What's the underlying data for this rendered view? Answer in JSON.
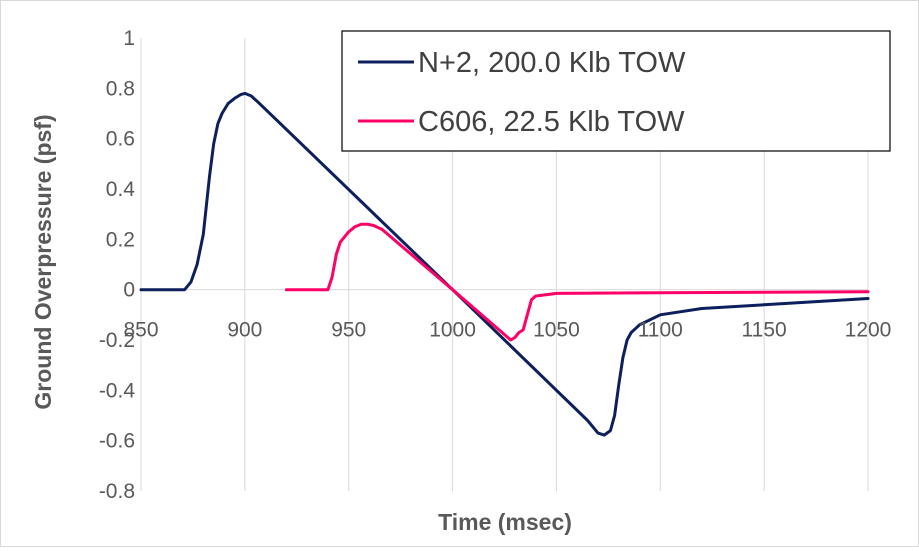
{
  "chart_data": {
    "type": "line",
    "title": "",
    "xlabel": "Time (msec)",
    "ylabel": "Ground Overpressure (psf)",
    "xlim": [
      850,
      1200
    ],
    "ylim": [
      -0.8,
      1
    ],
    "x_ticks": [
      850,
      900,
      950,
      1000,
      1050,
      1100,
      1150,
      1200
    ],
    "y_ticks": [
      -0.8,
      -0.6,
      -0.4,
      -0.2,
      0,
      0.2,
      0.4,
      0.6,
      0.8,
      1
    ],
    "x_tick_labels": [
      "850",
      "900",
      "950",
      "1000",
      "1050",
      "1100",
      "1150",
      "1200"
    ],
    "y_tick_labels": [
      "-0.8",
      "-0.6",
      "-0.4",
      "-0.2",
      "0",
      "0.2",
      "0.4",
      "0.6",
      "0.8",
      "1"
    ],
    "grid": "vertical",
    "legend_position": "top-right",
    "series": [
      {
        "name": "N+2, 200.0 Klb TOW",
        "color": "#0d1f5c",
        "x": [
          850,
          871,
          874,
          877,
          880,
          883,
          885,
          887,
          889,
          892,
          895,
          898,
          900,
          903,
          907,
          1000,
          1065,
          1070,
          1073,
          1076,
          1078,
          1080,
          1082,
          1084,
          1086,
          1090,
          1100,
          1120,
          1150,
          1170,
          1190,
          1200
        ],
        "y": [
          0,
          0,
          0.03,
          0.1,
          0.22,
          0.45,
          0.58,
          0.66,
          0.7,
          0.74,
          0.76,
          0.775,
          0.78,
          0.77,
          0.74,
          0,
          -0.52,
          -0.57,
          -0.578,
          -0.56,
          -0.5,
          -0.38,
          -0.27,
          -0.2,
          -0.17,
          -0.14,
          -0.1,
          -0.075,
          -0.06,
          -0.05,
          -0.04,
          -0.035
        ]
      },
      {
        "name": "C606, 22.5 Klb TOW",
        "color": "#ff0066",
        "x": [
          920,
          940,
          942,
          944,
          946,
          948,
          950,
          953,
          956,
          959,
          962,
          966,
          1000,
          1028,
          1030,
          1032,
          1034,
          1036,
          1038,
          1040,
          1045,
          1050,
          1100,
          1200
        ],
        "y": [
          0,
          0,
          0.05,
          0.14,
          0.19,
          0.21,
          0.23,
          0.25,
          0.26,
          0.26,
          0.255,
          0.24,
          0,
          -0.2,
          -0.19,
          -0.17,
          -0.16,
          -0.1,
          -0.04,
          -0.025,
          -0.02,
          -0.015,
          -0.012,
          -0.008
        ]
      }
    ]
  }
}
